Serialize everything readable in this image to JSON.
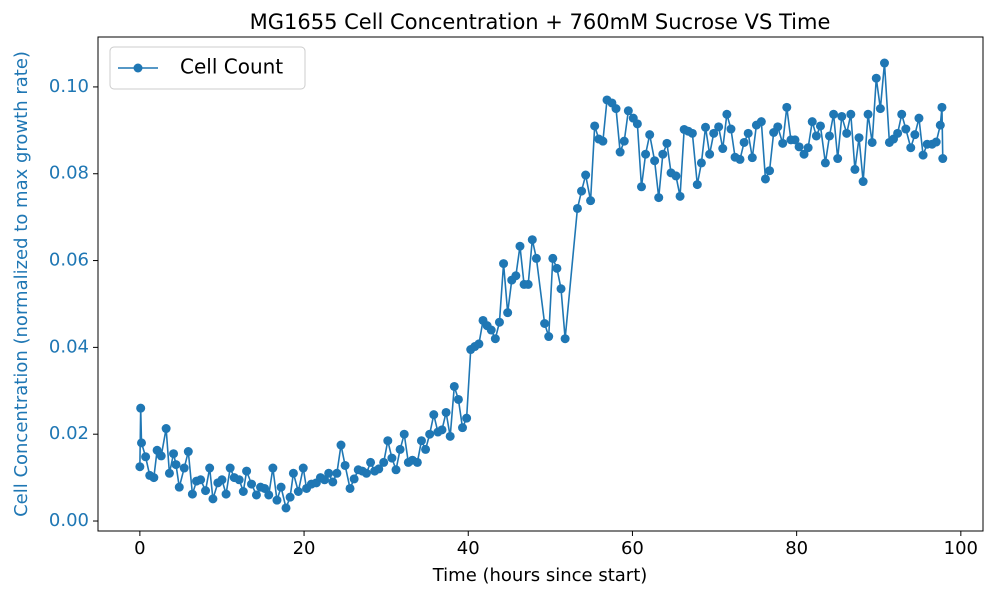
{
  "chart_data": {
    "type": "line",
    "title": "MG1655 Cell Concentration + 760mM Sucrose VS Time",
    "x_label": "Time (hours since start)",
    "y_label": "Cell Concentration (normalized to max growth rate)",
    "x": [
      0,
      0.1,
      0.2,
      0.7,
      1.2,
      1.7,
      2.1,
      2.6,
      3.2,
      3.6,
      4.1,
      4.4,
      4.8,
      5.4,
      5.9,
      6.4,
      6.9,
      7.4,
      8.0,
      8.5,
      8.9,
      9.5,
      10.0,
      10.5,
      11.0,
      11.5,
      12.1,
      12.6,
      13.0,
      13.6,
      14.2,
      14.7,
      15.2,
      15.7,
      16.2,
      16.7,
      17.2,
      17.8,
      18.3,
      18.7,
      19.3,
      19.9,
      20.3,
      20.9,
      21.5,
      22.0,
      22.5,
      23.0,
      23.5,
      24.0,
      24.5,
      25.0,
      25.6,
      26.1,
      26.6,
      27.1,
      27.6,
      28.1,
      28.6,
      29.1,
      29.7,
      30.2,
      30.7,
      31.2,
      31.7,
      32.2,
      32.7,
      33.2,
      33.8,
      34.3,
      34.8,
      35.3,
      35.8,
      36.3,
      36.8,
      37.3,
      37.8,
      38.3,
      38.8,
      39.3,
      39.8,
      40.3,
      40.8,
      41.3,
      41.8,
      42.3,
      42.8,
      43.3,
      43.8,
      44.3,
      44.8,
      45.3,
      45.8,
      46.3,
      46.8,
      47.3,
      47.8,
      48.3,
      49.3,
      49.8,
      50.3,
      50.8,
      51.3,
      51.8,
      53.3,
      53.8,
      54.3,
      54.9,
      55.4,
      55.9,
      56.4,
      56.9,
      57.5,
      58.0,
      58.5,
      59.0,
      59.5,
      60.1,
      60.6,
      61.1,
      61.6,
      62.1,
      62.7,
      63.2,
      63.7,
      64.2,
      64.7,
      65.3,
      65.8,
      66.3,
      66.8,
      67.3,
      67.9,
      68.4,
      68.9,
      69.4,
      69.9,
      70.5,
      71.0,
      71.5,
      72.0,
      72.5,
      73.1,
      73.6,
      74.1,
      74.6,
      75.1,
      75.7,
      76.2,
      76.7,
      77.2,
      77.7,
      78.3,
      78.8,
      79.3,
      79.8,
      80.3,
      80.9,
      81.4,
      81.9,
      82.4,
      82.9,
      83.5,
      84.0,
      84.5,
      85.0,
      85.5,
      86.1,
      86.6,
      87.1,
      87.6,
      88.1,
      88.7,
      89.2,
      89.7,
      90.2,
      90.7,
      91.3,
      91.8,
      92.3,
      92.8,
      93.3,
      93.9,
      94.4,
      94.9,
      95.4,
      95.9,
      96.5,
      97.0,
      97.5,
      97.7,
      97.8
    ],
    "series": [
      {
        "name": "Cell Count",
        "color": "#1f77b4",
        "values": [
          0.0125,
          0.026,
          0.018,
          0.0148,
          0.0105,
          0.01,
          0.0163,
          0.015,
          0.0213,
          0.011,
          0.0155,
          0.013,
          0.0078,
          0.0122,
          0.016,
          0.0062,
          0.0092,
          0.0095,
          0.007,
          0.0122,
          0.0051,
          0.0088,
          0.0095,
          0.0062,
          0.0122,
          0.01,
          0.0095,
          0.0068,
          0.0115,
          0.0085,
          0.006,
          0.0078,
          0.0075,
          0.006,
          0.0122,
          0.0048,
          0.0078,
          0.003,
          0.0055,
          0.011,
          0.0068,
          0.0122,
          0.0075,
          0.0085,
          0.0088,
          0.01,
          0.0095,
          0.011,
          0.009,
          0.011,
          0.0175,
          0.0128,
          0.0075,
          0.0097,
          0.0118,
          0.0115,
          0.011,
          0.0135,
          0.0115,
          0.012,
          0.0135,
          0.0185,
          0.0145,
          0.0118,
          0.0165,
          0.02,
          0.0135,
          0.014,
          0.0135,
          0.0185,
          0.0165,
          0.02,
          0.0245,
          0.0205,
          0.021,
          0.025,
          0.0195,
          0.031,
          0.028,
          0.0215,
          0.0237,
          0.0395,
          0.0402,
          0.0408,
          0.0462,
          0.045,
          0.044,
          0.042,
          0.0458,
          0.0593,
          0.048,
          0.0555,
          0.0565,
          0.0633,
          0.0545,
          0.0545,
          0.0648,
          0.0605,
          0.0455,
          0.0425,
          0.0605,
          0.0582,
          0.0535,
          0.042,
          0.072,
          0.076,
          0.0797,
          0.0738,
          0.091,
          0.088,
          0.0875,
          0.097,
          0.0963,
          0.095,
          0.085,
          0.0875,
          0.0945,
          0.0928,
          0.0915,
          0.077,
          0.0845,
          0.089,
          0.083,
          0.0745,
          0.0845,
          0.087,
          0.0802,
          0.0795,
          0.0748,
          0.0902,
          0.0898,
          0.0893,
          0.0775,
          0.0825,
          0.0907,
          0.0845,
          0.0893,
          0.0908,
          0.0858,
          0.0937,
          0.0903,
          0.0838,
          0.0833,
          0.0872,
          0.0893,
          0.0837,
          0.0912,
          0.092,
          0.0788,
          0.0807,
          0.0895,
          0.0908,
          0.087,
          0.0953,
          0.0878,
          0.0878,
          0.0862,
          0.0845,
          0.086,
          0.092,
          0.0887,
          0.091,
          0.0825,
          0.0887,
          0.0937,
          0.0835,
          0.0932,
          0.0893,
          0.0937,
          0.081,
          0.0883,
          0.0782,
          0.0937,
          0.0872,
          0.102,
          0.095,
          0.1055,
          0.0872,
          0.088,
          0.0893,
          0.0937,
          0.0903,
          0.086,
          0.089,
          0.0928,
          0.0843,
          0.0868,
          0.0868,
          0.0873,
          0.0912,
          0.0953,
          0.0835
        ]
      }
    ],
    "xlim": [
      -5.1,
      102.7
    ],
    "ylim": [
      -0.0023,
      0.1115
    ],
    "xticks": [
      0,
      20,
      40,
      60,
      80,
      100
    ],
    "yticks": [
      {
        "value": 0,
        "label": "0.00"
      },
      {
        "value": 0.02,
        "label": "0.02"
      },
      {
        "value": 0.04,
        "label": "0.04"
      },
      {
        "value": 0.06,
        "label": "0.06"
      },
      {
        "value": 0.08,
        "label": "0.08"
      },
      {
        "value": 0.1,
        "label": "0.10"
      }
    ],
    "legend": "upper left",
    "grid": false
  }
}
